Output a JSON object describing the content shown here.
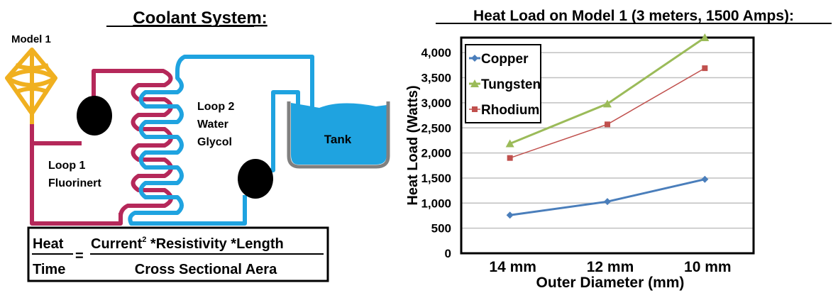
{
  "diagram": {
    "title": "Coolant System:",
    "model_label": "Model 1",
    "loop1_label": [
      "Loop 1",
      "Fluorinert"
    ],
    "loop2_label": [
      "Loop 2",
      "Water",
      "Glycol"
    ],
    "tank_label": "Tank",
    "colors": {
      "loop1": "#b5285a",
      "loop2": "#1fa3e0",
      "model": "#f0b020",
      "tank": "#808080"
    }
  },
  "formula": {
    "lhs_num": "Heat",
    "lhs_den": "Time",
    "equals": "=",
    "rhs_num_a": "Current",
    "rhs_num_sup": "2",
    "rhs_num_b": " *Resistivity *Length",
    "rhs_den": "Cross Sectional Aera"
  },
  "chart_data": {
    "type": "line",
    "title": "Heat Load on Model 1 (3 meters, 1500 Amps):",
    "xlabel": "Outer Diameter (mm)",
    "ylabel": "Heat Load (Watts)",
    "categories": [
      "14 mm",
      "12 mm",
      "10 mm"
    ],
    "ylim": [
      0,
      4300
    ],
    "yticks": [
      0,
      500,
      1000,
      1500,
      2000,
      2500,
      3000,
      3500,
      4000
    ],
    "ytick_labels": [
      "0",
      "500",
      "1,000",
      "1,500",
      "2,000",
      "2,500",
      "3,000",
      "3,500",
      "4,000"
    ],
    "grid": true,
    "legend_position": "top-left",
    "series": [
      {
        "name": "Copper",
        "values": [
          760,
          1030,
          1475
        ],
        "color": "#4a7ebb",
        "marker": "diamond"
      },
      {
        "name": "Tungsten",
        "values": [
          2185,
          2980,
          4300
        ],
        "color": "#9bbb59",
        "marker": "triangle"
      },
      {
        "name": "Rhodium",
        "values": [
          1900,
          2570,
          3690
        ],
        "color": "#c0504d",
        "marker": "square"
      }
    ]
  }
}
